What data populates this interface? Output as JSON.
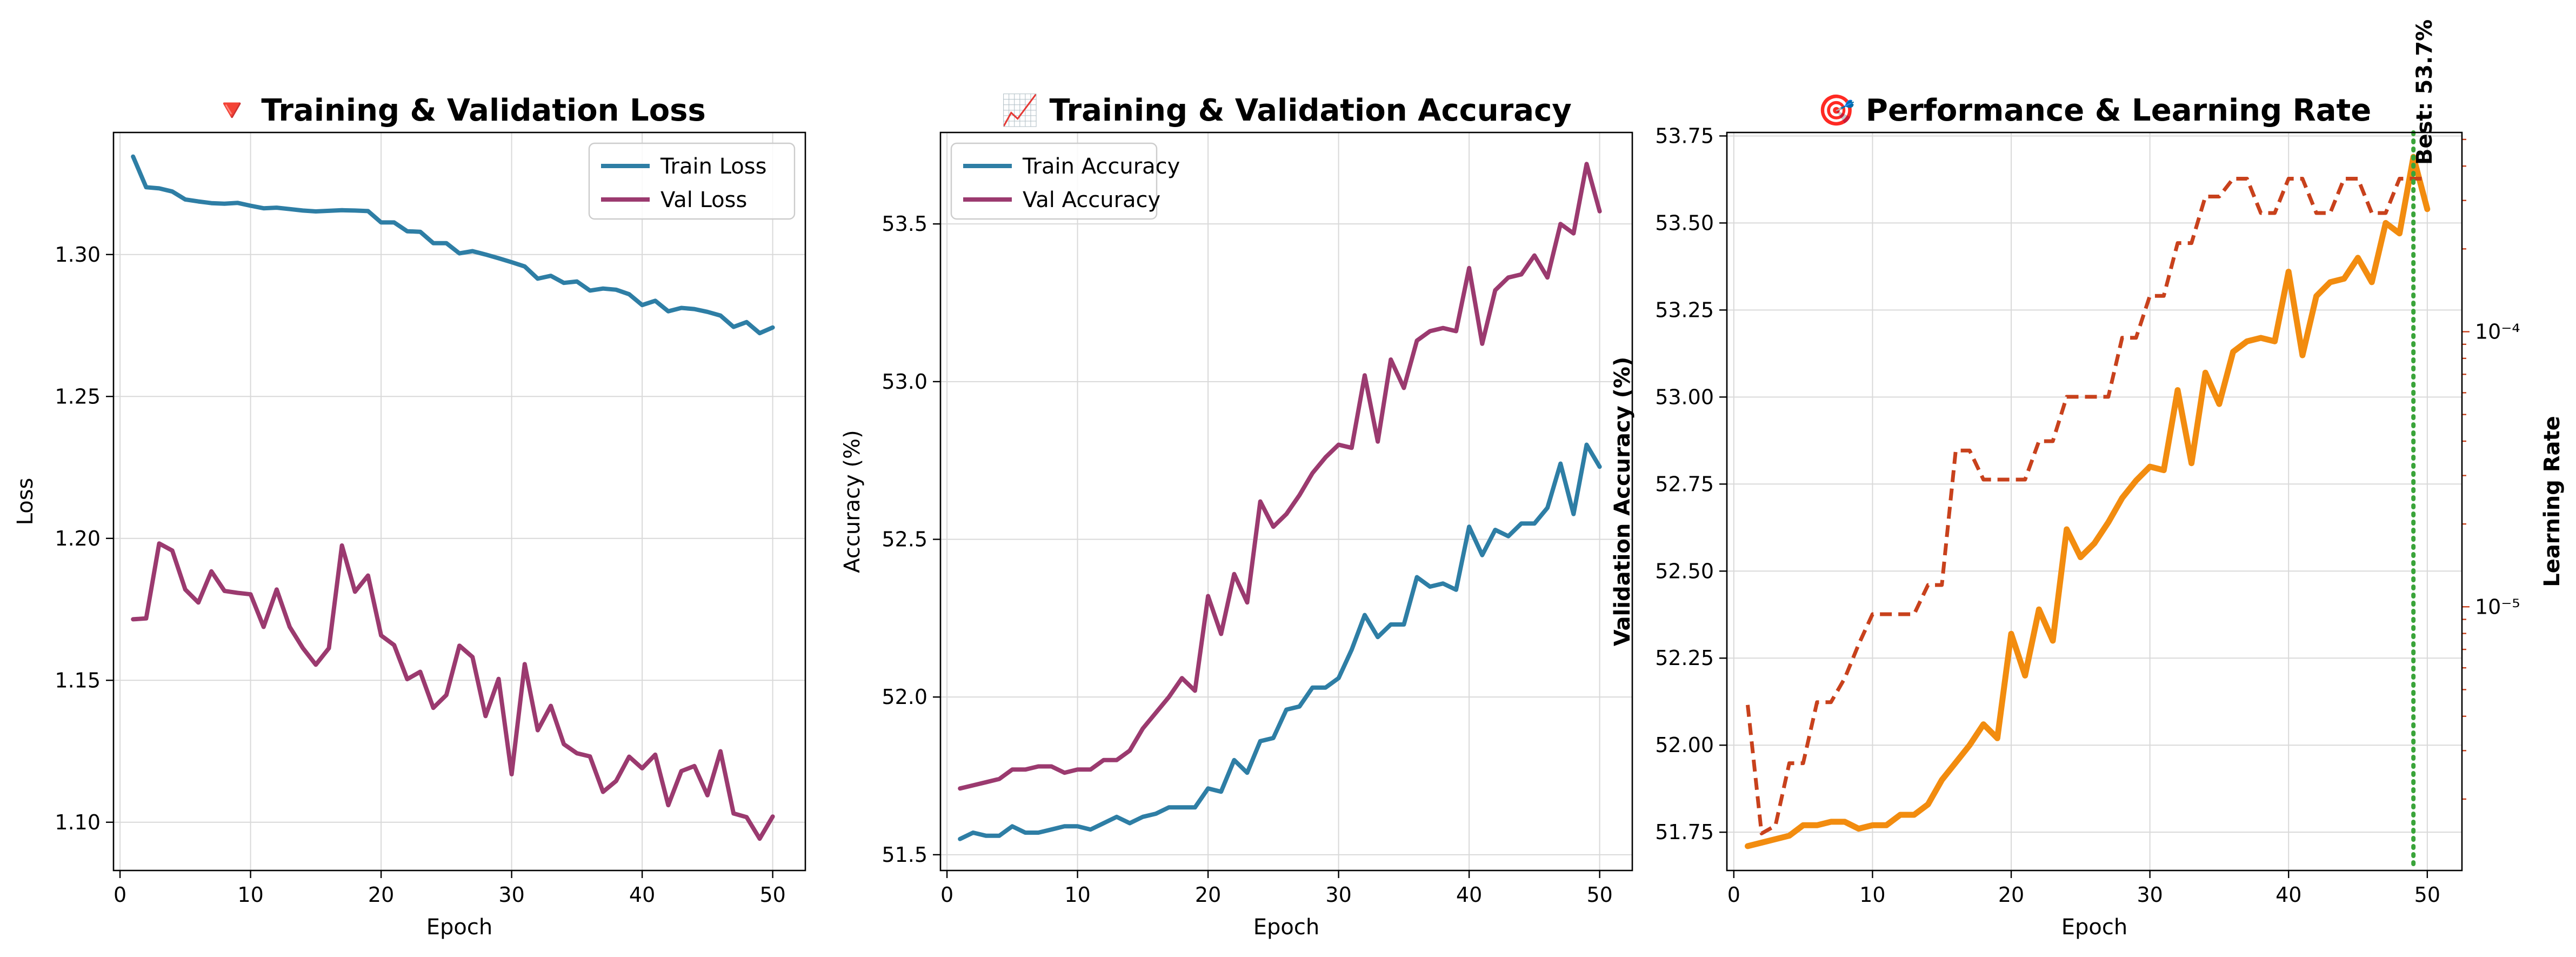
{
  "colors": {
    "train": "#2e7ea5",
    "val": "#9b3a6f",
    "perf": "#f28c0f",
    "lr": "#c8411c",
    "best": "#3aa43a"
  },
  "chart_data": [
    {
      "type": "line",
      "title": "🔻 Training & Validation Loss",
      "xlabel": "Epoch",
      "ylabel": "Loss",
      "xlim": [
        -0.5,
        52.5
      ],
      "ylim": [
        1.083,
        1.343
      ],
      "xticks": [
        0,
        10,
        20,
        30,
        40,
        50
      ],
      "yticks": [
        1.1,
        1.15,
        1.2,
        1.25,
        1.3
      ],
      "ytick_labels": [
        "1.10",
        "1.15",
        "1.20",
        "1.25",
        "1.30"
      ],
      "grid": true,
      "legend": "top-right",
      "x": [
        1,
        2,
        3,
        4,
        5,
        6,
        7,
        8,
        9,
        10,
        11,
        12,
        13,
        14,
        15,
        16,
        17,
        18,
        19,
        20,
        21,
        22,
        23,
        24,
        25,
        26,
        27,
        28,
        29,
        30,
        31,
        32,
        33,
        34,
        35,
        36,
        37,
        38,
        39,
        40,
        41,
        42,
        43,
        44,
        45,
        46,
        47,
        48,
        49,
        50
      ],
      "series": [
        {
          "name": "Train Loss",
          "color_key": "train",
          "values": [
            1.3345,
            1.3237,
            1.3233,
            1.3222,
            1.3194,
            1.3187,
            1.3181,
            1.3179,
            1.3182,
            1.3172,
            1.3163,
            1.3165,
            1.316,
            1.3155,
            1.3152,
            1.3154,
            1.3156,
            1.3155,
            1.3153,
            1.3113,
            1.3113,
            1.3082,
            1.308,
            1.304,
            1.304,
            1.3004,
            1.3012,
            1.3,
            1.2987,
            1.2973,
            1.2958,
            1.2915,
            1.2925,
            1.29,
            1.2905,
            1.2873,
            1.288,
            1.2876,
            1.286,
            1.2822,
            1.2837,
            1.28,
            1.2812,
            1.2808,
            1.2798,
            1.2785,
            1.2745,
            1.2762,
            1.2723,
            1.2743
          ]
        },
        {
          "name": "Val Loss",
          "color_key": "val",
          "values": [
            1.1715,
            1.1718,
            1.1982,
            1.1957,
            1.182,
            1.1774,
            1.1884,
            1.1815,
            1.1808,
            1.1803,
            1.1688,
            1.182,
            1.1688,
            1.1614,
            1.1555,
            1.1613,
            1.1975,
            1.1812,
            1.1869,
            1.1658,
            1.1624,
            1.1504,
            1.153,
            1.1403,
            1.1448,
            1.1622,
            1.1582,
            1.1374,
            1.1505,
            1.1169,
            1.1557,
            1.1324,
            1.141,
            1.1275,
            1.1243,
            1.1232,
            1.1107,
            1.1145,
            1.1231,
            1.119,
            1.1238,
            1.106,
            1.118,
            1.1198,
            1.1095,
            1.125,
            1.1031,
            1.1018,
            1.0942,
            1.102
          ]
        }
      ]
    },
    {
      "type": "line",
      "title": "📈 Training & Validation Accuracy",
      "xlabel": "Epoch",
      "ylabel": "Accuracy (%)",
      "xlim": [
        -0.5,
        52.5
      ],
      "ylim": [
        51.45,
        53.79
      ],
      "xticks": [
        0,
        10,
        20,
        30,
        40,
        50
      ],
      "yticks": [
        51.5,
        52.0,
        52.5,
        53.0,
        53.5
      ],
      "ytick_labels": [
        "51.5",
        "52.0",
        "52.5",
        "53.0",
        "53.5"
      ],
      "grid": true,
      "legend": "top-left",
      "x": [
        1,
        2,
        3,
        4,
        5,
        6,
        7,
        8,
        9,
        10,
        11,
        12,
        13,
        14,
        15,
        16,
        17,
        18,
        19,
        20,
        21,
        22,
        23,
        24,
        25,
        26,
        27,
        28,
        29,
        30,
        31,
        32,
        33,
        34,
        35,
        36,
        37,
        38,
        39,
        40,
        41,
        42,
        43,
        44,
        45,
        46,
        47,
        48,
        49,
        50
      ],
      "series": [
        {
          "name": "Train Accuracy",
          "color_key": "train",
          "values": [
            51.55,
            51.57,
            51.56,
            51.56,
            51.59,
            51.57,
            51.57,
            51.58,
            51.59,
            51.59,
            51.58,
            51.6,
            51.62,
            51.6,
            51.62,
            51.63,
            51.65,
            51.65,
            51.65,
            51.71,
            51.7,
            51.8,
            51.76,
            51.86,
            51.87,
            51.96,
            51.97,
            52.03,
            52.03,
            52.06,
            52.15,
            52.26,
            52.19,
            52.23,
            52.23,
            52.38,
            52.35,
            52.36,
            52.34,
            52.54,
            52.45,
            52.53,
            52.51,
            52.55,
            52.55,
            52.6,
            52.74,
            52.58,
            52.8,
            52.73
          ]
        },
        {
          "name": "Val Accuracy",
          "color_key": "val",
          "values": [
            51.71,
            51.72,
            51.73,
            51.74,
            51.77,
            51.77,
            51.78,
            51.78,
            51.76,
            51.77,
            51.77,
            51.8,
            51.8,
            51.83,
            51.9,
            51.95,
            52.0,
            52.06,
            52.02,
            52.32,
            52.2,
            52.39,
            52.3,
            52.62,
            52.54,
            52.58,
            52.64,
            52.71,
            52.76,
            52.8,
            52.79,
            53.02,
            52.81,
            53.07,
            52.98,
            53.13,
            53.16,
            53.17,
            53.16,
            53.36,
            53.12,
            53.29,
            53.33,
            53.34,
            53.4,
            53.33,
            53.5,
            53.47,
            53.69,
            53.54
          ]
        }
      ]
    },
    {
      "type": "line",
      "title": "🎯 Performance & Learning Rate",
      "xlabel": "Epoch",
      "ylabel": "Validation Accuracy (%)",
      "y2label": "Learning Rate",
      "y2scale": "log",
      "xlim": [
        -0.5,
        52.5
      ],
      "ylim": [
        51.64,
        53.76
      ],
      "y2lim": [
        1.1e-06,
        0.00053
      ],
      "xticks": [
        0,
        10,
        20,
        30,
        40,
        50
      ],
      "yticks": [
        51.75,
        52.0,
        52.25,
        52.5,
        52.75,
        53.0,
        53.25,
        53.5,
        53.75
      ],
      "ytick_labels": [
        "51.75",
        "52.00",
        "52.25",
        "52.50",
        "52.75",
        "53.00",
        "53.25",
        "53.50",
        "53.75"
      ],
      "y2ticks": [
        1e-05,
        0.0001
      ],
      "y2tick_labels": [
        "10⁻⁵",
        "10⁻⁴"
      ],
      "grid": true,
      "best_epoch": 49,
      "best_label": "Best: 53.7%",
      "x": [
        1,
        2,
        3,
        4,
        5,
        6,
        7,
        8,
        9,
        10,
        11,
        12,
        13,
        14,
        15,
        16,
        17,
        18,
        19,
        20,
        21,
        22,
        23,
        24,
        25,
        26,
        27,
        28,
        29,
        30,
        31,
        32,
        33,
        34,
        35,
        36,
        37,
        38,
        39,
        40,
        41,
        42,
        43,
        44,
        45,
        46,
        47,
        48,
        49,
        50
      ],
      "series": [
        {
          "name": "Validation Accuracy",
          "color_key": "perf",
          "axis": "left",
          "values": [
            51.71,
            51.72,
            51.73,
            51.74,
            51.77,
            51.77,
            51.78,
            51.78,
            51.76,
            51.77,
            51.77,
            51.8,
            51.8,
            51.83,
            51.9,
            51.95,
            52.0,
            52.06,
            52.02,
            52.32,
            52.2,
            52.39,
            52.3,
            52.62,
            52.54,
            52.58,
            52.64,
            52.71,
            52.76,
            52.8,
            52.79,
            53.02,
            52.81,
            53.07,
            52.98,
            53.13,
            53.16,
            53.17,
            53.16,
            53.36,
            53.12,
            53.29,
            53.33,
            53.34,
            53.4,
            53.33,
            53.5,
            53.47,
            53.69,
            53.54
          ]
        },
        {
          "name": "Learning Rate",
          "color_key": "lr",
          "axis": "right",
          "style": "dashed",
          "values": [
            4.4e-06,
            1.5e-06,
            1.6e-06,
            2.7e-06,
            2.7e-06,
            4.5e-06,
            4.5e-06,
            5.5e-06,
            7.3e-06,
            9.4e-06,
            9.4e-06,
            9.4e-06,
            9.4e-06,
            1.2e-05,
            1.2e-05,
            3.7e-05,
            3.7e-05,
            2.9e-05,
            2.9e-05,
            2.9e-05,
            2.9e-05,
            4e-05,
            4e-05,
            5.8e-05,
            5.8e-05,
            5.8e-05,
            5.8e-05,
            9.5e-05,
            9.5e-05,
            0.000135,
            0.000135,
            0.00021,
            0.00021,
            0.00031,
            0.00031,
            0.00036,
            0.00036,
            0.00027,
            0.00027,
            0.00036,
            0.00036,
            0.00027,
            0.00027,
            0.00036,
            0.00036,
            0.00027,
            0.00027,
            0.00036,
            0.00036,
            0.00036
          ]
        }
      ]
    }
  ]
}
